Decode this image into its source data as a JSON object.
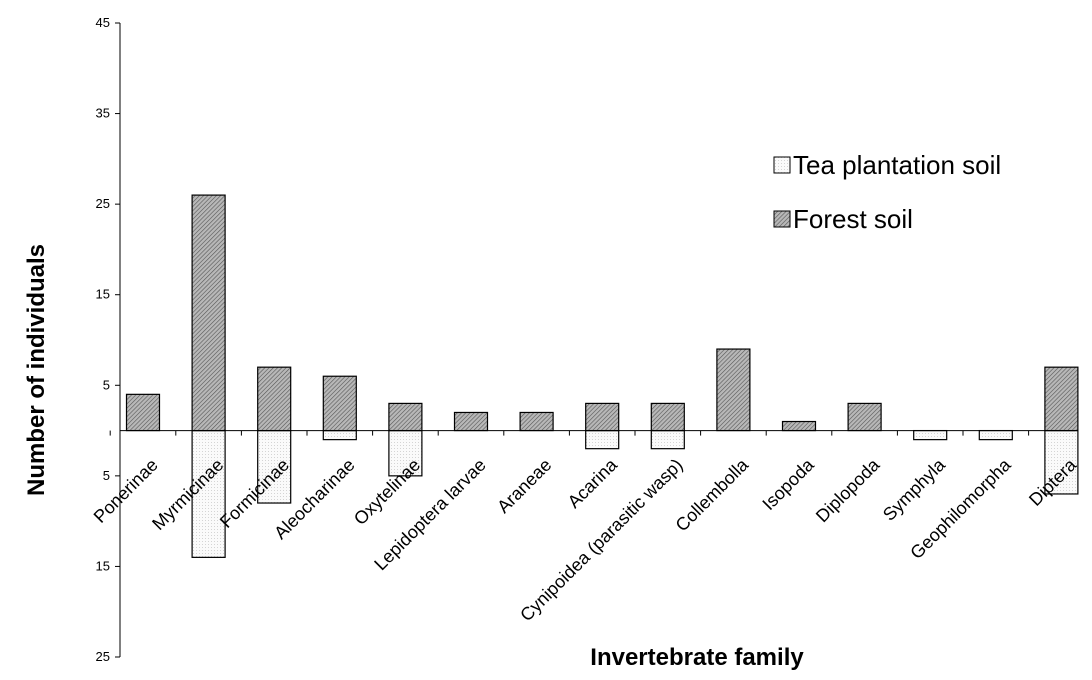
{
  "chart_data": {
    "type": "bar",
    "title": "",
    "xlabel": "Invertebrate family",
    "ylabel": "Number of individuals",
    "categories": [
      "Ponerinae",
      "Myrmicinae",
      "Formicinae",
      "Aleocharinae",
      "Oxytelinae",
      "Lepidoptera larvae",
      "Araneae",
      "Acarina",
      "Cynipoidea (parasitic wasp)",
      "Collembolla",
      "Isopoda",
      "Diplopoda",
      "Symphyla",
      "Geophilomorpha",
      "Diptera"
    ],
    "series": [
      {
        "name": "Tea plantation soil",
        "direction": "down",
        "values": [
          0,
          14,
          8,
          1,
          5,
          0,
          0,
          2,
          2,
          0,
          0,
          0,
          1,
          1,
          7
        ]
      },
      {
        "name": "Forest soil",
        "direction": "up",
        "values": [
          4,
          26,
          7,
          6,
          3,
          2,
          2,
          3,
          3,
          9,
          1,
          3,
          0,
          0,
          7
        ]
      }
    ],
    "yticks": [
      {
        "value": 45,
        "label": "45"
      },
      {
        "value": 35,
        "label": "35"
      },
      {
        "value": 25,
        "label": "25"
      },
      {
        "value": 15,
        "label": "15"
      },
      {
        "value": 5,
        "label": "5"
      },
      {
        "value": -5,
        "label": "5"
      },
      {
        "value": -15,
        "label": "15"
      },
      {
        "value": -25,
        "label": "25"
      }
    ],
    "ylim": [
      -25,
      45
    ],
    "grid": false,
    "legend_position": "top-right",
    "colors": {
      "forest_fill": "#a8a8a8",
      "tea_fill": "#f2f2f2",
      "stroke": "#000000"
    }
  }
}
